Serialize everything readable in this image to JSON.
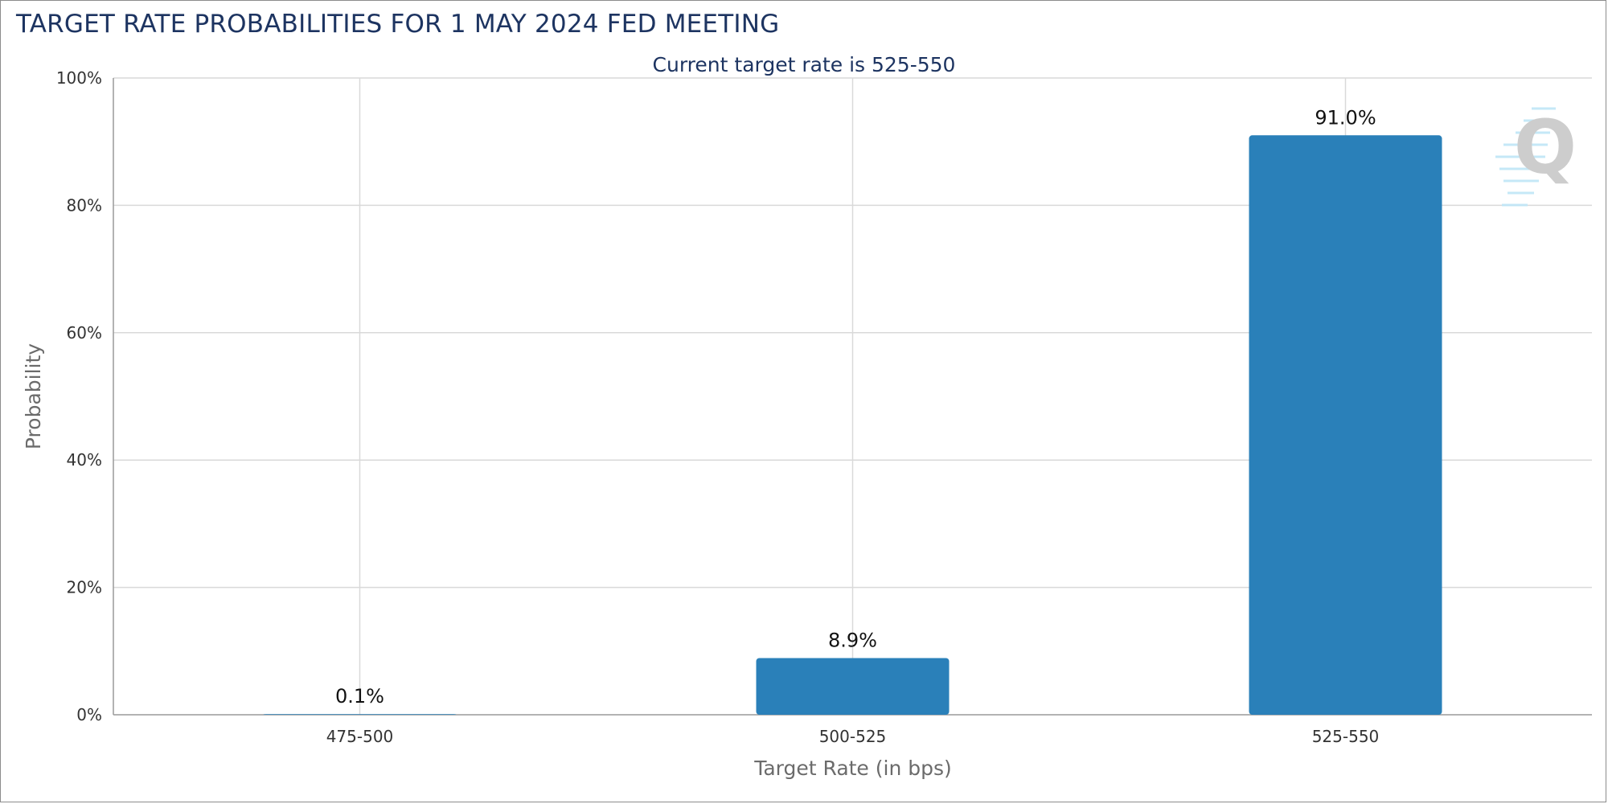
{
  "title": "TARGET RATE PROBABILITIES FOR 1 MAY 2024 FED MEETING",
  "chart_data": {
    "type": "bar",
    "title": "TARGET RATE PROBABILITIES FOR 1 MAY 2024 FED MEETING",
    "subtitle": "Current target rate is 525-550",
    "categories": [
      "475-500",
      "500-525",
      "525-550"
    ],
    "values": [
      0.1,
      8.9,
      91.0
    ],
    "data_labels": [
      "0.1%",
      "8.9%",
      "91.0%"
    ],
    "xlabel": "Target Rate (in bps)",
    "ylabel": "Probability",
    "ylim": [
      0,
      100
    ],
    "yticks": [
      0,
      20,
      40,
      60,
      80,
      100
    ],
    "ytick_labels": [
      "0%",
      "20%",
      "40%",
      "60%",
      "80%",
      "100%"
    ],
    "grid": true,
    "bar_color": "#2a80b9",
    "legend": "none"
  },
  "colors": {
    "title": "#1d3461",
    "bar": "#2a80b9",
    "grid": "#d9d9d9",
    "axis_title": "#6b6b6b"
  },
  "watermark": "Q-logo-icon"
}
